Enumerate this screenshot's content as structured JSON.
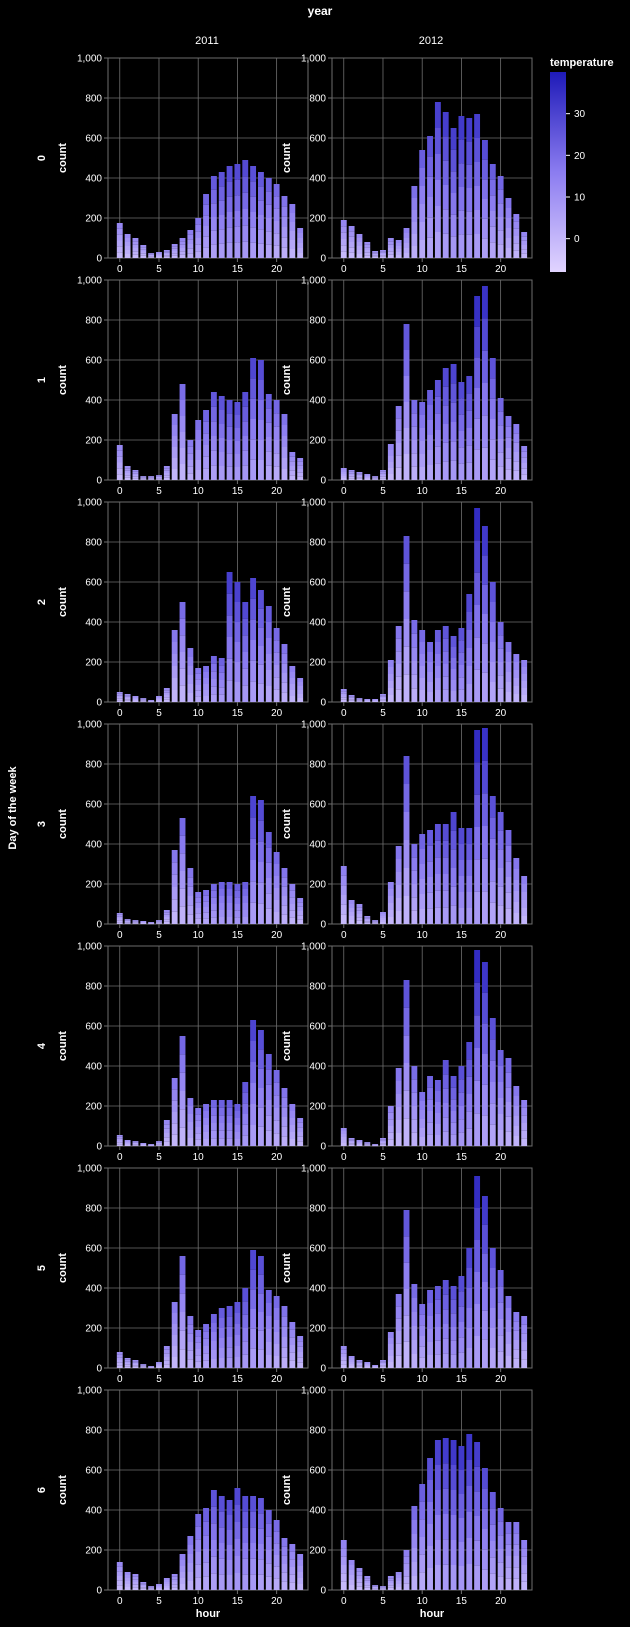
{
  "colors": {
    "background": "#000000",
    "grid": "#6e6e6e",
    "bar_low": "#d9ccfd",
    "bar_mid": "#8b7cf0",
    "bar_high": "#1e1ab8"
  },
  "chart_data": {
    "type": "bar",
    "encoding": "stacked bars, faceted by day of week (rows) and year (columns); segment color = temperature",
    "title": "year",
    "col_values": [
      "2011",
      "2012"
    ],
    "row_title": "Day of the week",
    "row_values": [
      "0",
      "1",
      "2",
      "3",
      "4",
      "5",
      "6"
    ],
    "xlabel": "hour",
    "ylabel": "count",
    "ylim": [
      0,
      1000
    ],
    "y_ticks": [
      0,
      200,
      400,
      600,
      800,
      1000
    ],
    "y_tick_labels": [
      "0",
      "200",
      "400",
      "600",
      "800",
      "1,000"
    ],
    "xlim": [
      -1.5,
      24
    ],
    "x_ticks": [
      0,
      5,
      10,
      15,
      20
    ],
    "x": [
      0,
      1,
      2,
      3,
      4,
      5,
      6,
      7,
      8,
      9,
      10,
      11,
      12,
      13,
      14,
      15,
      16,
      17,
      18,
      19,
      20,
      21,
      22,
      23
    ],
    "legend": {
      "title": "temperature",
      "position": "top-right",
      "range": [
        -8,
        40
      ],
      "ticks": [
        30,
        20,
        10,
        0
      ]
    },
    "panels": [
      {
        "row": "0",
        "col": "2011",
        "values": [
          175,
          120,
          100,
          65,
          25,
          30,
          40,
          70,
          100,
          140,
          200,
          320,
          410,
          430,
          460,
          470,
          490,
          460,
          430,
          400,
          370,
          310,
          270,
          150
        ]
      },
      {
        "row": "0",
        "col": "2012",
        "values": [
          190,
          160,
          120,
          80,
          35,
          40,
          100,
          90,
          150,
          360,
          540,
          610,
          780,
          730,
          650,
          710,
          700,
          720,
          590,
          470,
          410,
          300,
          220,
          130
        ]
      },
      {
        "row": "1",
        "col": "2011",
        "values": [
          175,
          70,
          50,
          20,
          20,
          25,
          70,
          330,
          480,
          200,
          300,
          350,
          440,
          420,
          400,
          390,
          440,
          610,
          600,
          430,
          400,
          330,
          140,
          110
        ]
      },
      {
        "row": "1",
        "col": "2012",
        "values": [
          60,
          50,
          40,
          30,
          20,
          50,
          180,
          370,
          780,
          400,
          390,
          450,
          500,
          560,
          580,
          490,
          520,
          920,
          970,
          610,
          410,
          320,
          280,
          170
        ]
      },
      {
        "row": "2",
        "col": "2011",
        "values": [
          50,
          40,
          30,
          20,
          10,
          30,
          70,
          360,
          500,
          270,
          170,
          180,
          230,
          220,
          650,
          600,
          500,
          620,
          560,
          480,
          370,
          290,
          180,
          120
        ]
      },
      {
        "row": "2",
        "col": "2012",
        "values": [
          65,
          35,
          20,
          15,
          15,
          40,
          210,
          380,
          830,
          410,
          360,
          300,
          360,
          380,
          330,
          370,
          540,
          970,
          880,
          600,
          400,
          300,
          240,
          210
        ]
      },
      {
        "row": "3",
        "col": "2011",
        "values": [
          55,
          25,
          20,
          15,
          10,
          20,
          70,
          370,
          530,
          280,
          160,
          170,
          200,
          210,
          210,
          200,
          210,
          640,
          620,
          460,
          360,
          280,
          200,
          130
        ]
      },
      {
        "row": "3",
        "col": "2012",
        "values": [
          290,
          120,
          100,
          40,
          20,
          60,
          210,
          390,
          840,
          400,
          450,
          470,
          500,
          500,
          560,
          480,
          480,
          970,
          980,
          640,
          560,
          470,
          330,
          240
        ]
      },
      {
        "row": "4",
        "col": "2011",
        "values": [
          55,
          30,
          25,
          15,
          10,
          25,
          130,
          340,
          550,
          240,
          190,
          210,
          230,
          230,
          230,
          210,
          320,
          630,
          580,
          460,
          380,
          290,
          210,
          140
        ]
      },
      {
        "row": "4",
        "col": "2012",
        "values": [
          90,
          40,
          30,
          20,
          10,
          40,
          200,
          390,
          830,
          400,
          270,
          350,
          330,
          430,
          350,
          400,
          520,
          980,
          920,
          640,
          480,
          440,
          300,
          230
        ]
      },
      {
        "row": "5",
        "col": "2011",
        "values": [
          80,
          50,
          40,
          20,
          10,
          30,
          110,
          330,
          560,
          260,
          190,
          220,
          270,
          300,
          310,
          330,
          400,
          590,
          560,
          390,
          360,
          310,
          230,
          160
        ]
      },
      {
        "row": "5",
        "col": "2012",
        "values": [
          110,
          60,
          40,
          30,
          15,
          40,
          180,
          370,
          790,
          420,
          320,
          390,
          410,
          440,
          410,
          460,
          600,
          960,
          860,
          600,
          490,
          360,
          280,
          260
        ]
      },
      {
        "row": "6",
        "col": "2011",
        "values": [
          140,
          90,
          80,
          40,
          20,
          30,
          60,
          80,
          180,
          270,
          380,
          410,
          500,
          470,
          450,
          510,
          470,
          470,
          460,
          400,
          350,
          260,
          230,
          180
        ]
      },
      {
        "row": "6",
        "col": "2012",
        "values": [
          250,
          150,
          110,
          70,
          25,
          20,
          70,
          90,
          200,
          420,
          530,
          660,
          750,
          760,
          750,
          720,
          780,
          740,
          610,
          490,
          410,
          340,
          340,
          250
        ]
      }
    ]
  }
}
